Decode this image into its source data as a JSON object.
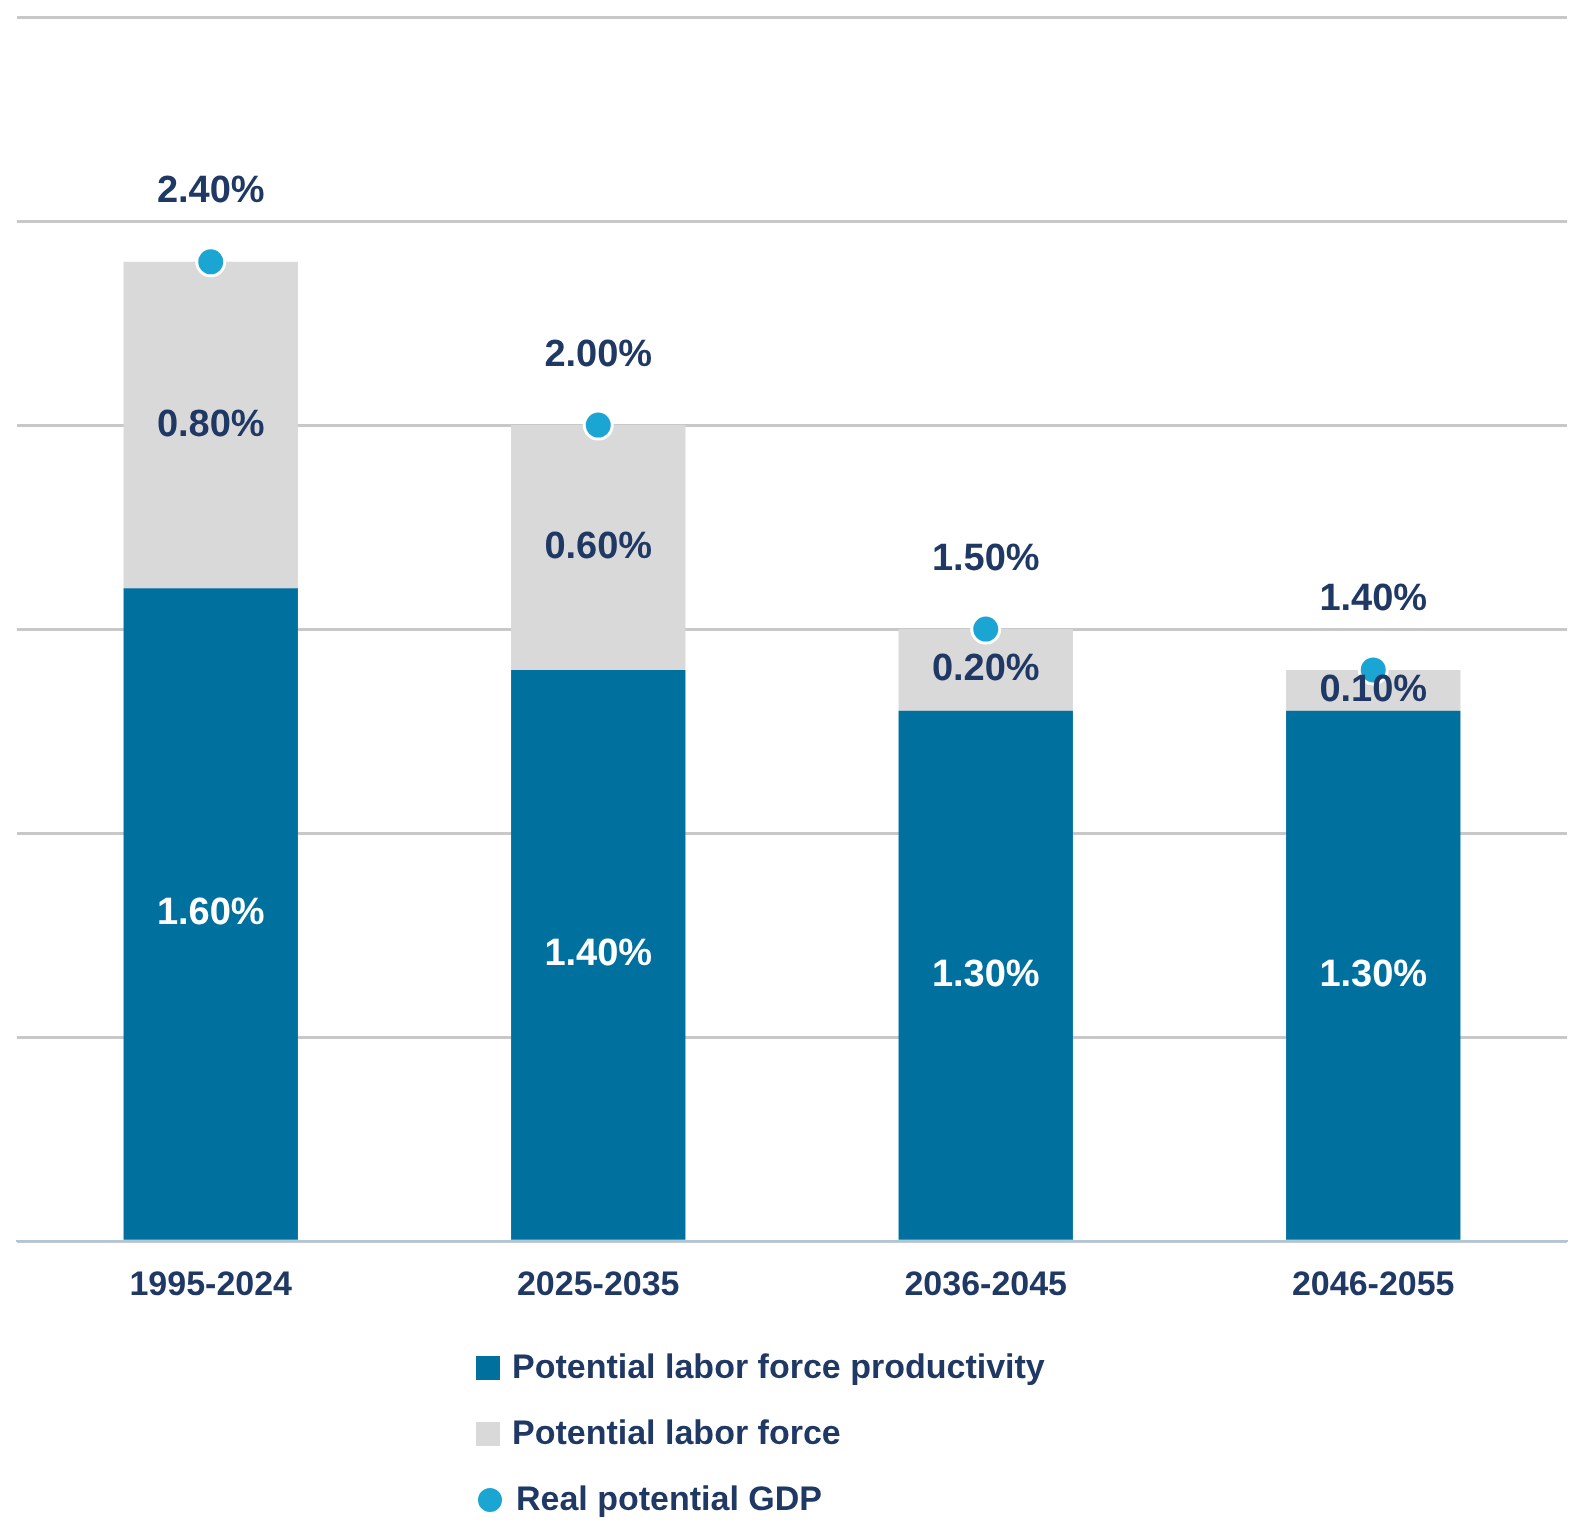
{
  "chart_data": {
    "type": "bar",
    "stacked": true,
    "categories": [
      "1995-2024",
      "2025-2035",
      "2036-2045",
      "2046-2055"
    ],
    "series": [
      {
        "name": "Potential labor force productivity",
        "color": "#00709f",
        "values": [
          1.6,
          1.4,
          1.3,
          1.3
        ],
        "value_labels": [
          "1.60%",
          "1.40%",
          "1.30%",
          "1.30%"
        ]
      },
      {
        "name": "Potential labor force",
        "color": "#d9d9d9",
        "values": [
          0.8,
          0.6,
          0.2,
          0.1
        ],
        "value_labels": [
          "0.80%",
          "0.60%",
          "0.20%",
          "0.10%"
        ]
      },
      {
        "name": "Real potential GDP",
        "type": "scatter",
        "marker": "circle",
        "color": "#1ba5d3",
        "values": [
          2.4,
          2.0,
          1.5,
          1.4
        ],
        "value_labels": [
          "2.40%",
          "2.00%",
          "1.50%",
          "1.40%"
        ]
      }
    ],
    "ylim": [
      0,
      3
    ],
    "yticks": [
      {
        "value": 0,
        "label": null
      },
      {
        "value": 0.5,
        "label": null
      },
      {
        "value": 1,
        "label": null
      },
      {
        "value": 1.5,
        "label": null
      },
      {
        "value": 2,
        "label": null
      },
      {
        "value": 2.5,
        "label": null
      },
      {
        "value": 3,
        "label": null
      }
    ],
    "grid": "y",
    "tick_labels": "x",
    "legend": "bottom"
  }
}
